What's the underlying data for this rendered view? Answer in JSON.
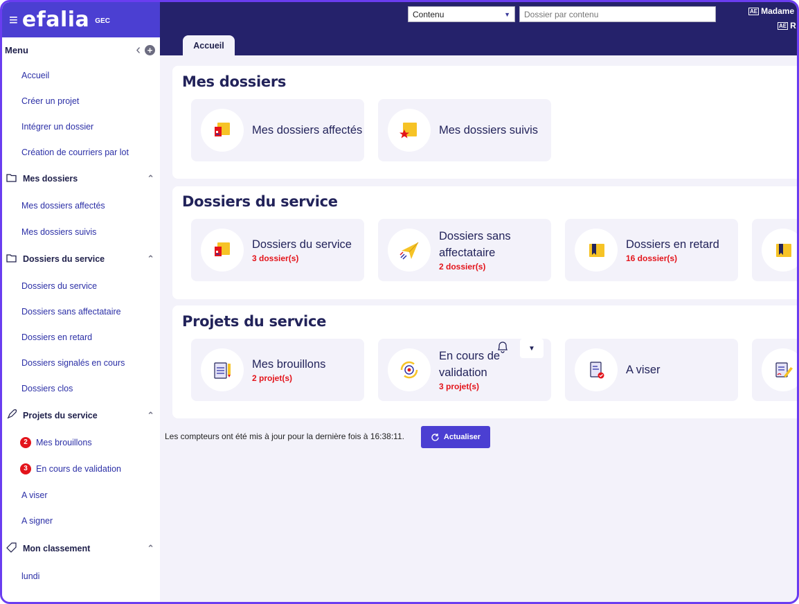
{
  "brand": {
    "logo": "efalia",
    "suffix": "GEC",
    "menu_icon": "hamburger-icon"
  },
  "sidebar": {
    "menu_title": "Menu",
    "groups": [
      {
        "items": [
          "Accueil",
          "Créer un projet",
          "Intégrer un dossier",
          "Création de courriers par lot"
        ]
      },
      {
        "title": "Mes dossiers",
        "icon": "folder-icon",
        "items": [
          "Mes dossiers affectés",
          "Mes dossiers suivis"
        ]
      },
      {
        "title": "Dossiers du service",
        "icon": "folder-icon",
        "items": [
          "Dossiers du service",
          "Dossiers sans affectataire",
          "Dossiers en retard",
          "Dossiers signalés en cours",
          "Dossiers clos"
        ]
      },
      {
        "title": "Projets du service",
        "icon": "rocket-icon",
        "items": [
          "Mes brouillons",
          "En cours de validation",
          "A viser",
          "A signer"
        ],
        "badges": [
          "2",
          "3",
          "",
          ""
        ]
      },
      {
        "title": "Mon classement",
        "icon": "tag-icon",
        "items": [
          "lundi"
        ]
      }
    ]
  },
  "topbar": {
    "search_scope": "Contenu",
    "search_placeholder": "Dossier par contenu",
    "user_line1": "Madame",
    "user_line2": "R",
    "active_tab": "Accueil"
  },
  "sections": {
    "mes_dossiers": {
      "title": "Mes dossiers",
      "tiles": [
        {
          "label": "Mes dossiers affectés",
          "icon": "folder-assigned-icon",
          "count": ""
        },
        {
          "label": "Mes dossiers suivis",
          "icon": "folder-star-icon",
          "count": ""
        }
      ]
    },
    "dossiers_service": {
      "title": "Dossiers du service",
      "tiles": [
        {
          "label": "Dossiers du service",
          "icon": "folder-assigned-icon",
          "count": "3 dossier(s)"
        },
        {
          "label": "Dossiers sans affectataire",
          "icon": "paper-plane-icon",
          "count": "2 dossier(s)"
        },
        {
          "label": "Dossiers en retard",
          "icon": "folder-bookmark-icon",
          "count": "16 dossier(s)"
        },
        {
          "label": "",
          "icon": "folder-bookmark-icon",
          "count": ""
        }
      ]
    },
    "projets_service": {
      "title": "Projets du service",
      "tiles": [
        {
          "label": "Mes brouillons",
          "icon": "notepad-pencil-icon",
          "count": "2 projet(s)"
        },
        {
          "label": "En cours de validation",
          "icon": "validation-target-icon",
          "count": "3 projet(s)"
        },
        {
          "label": "A viser",
          "icon": "document-check-icon",
          "count": ""
        },
        {
          "label": "",
          "icon": "document-sign-icon",
          "count": ""
        }
      ]
    }
  },
  "footer": {
    "note": "Les compteurs ont été mis à jour pour la dernière fois à 16:38:11.",
    "refresh_label": "Actualiser"
  },
  "colors": {
    "accent": "#4b3fd2",
    "topbar": "#25226b",
    "frame": "#6a3df0",
    "count_red": "#e3141b",
    "link": "#2b2fa6",
    "folder_yellow": "#f6c326"
  }
}
